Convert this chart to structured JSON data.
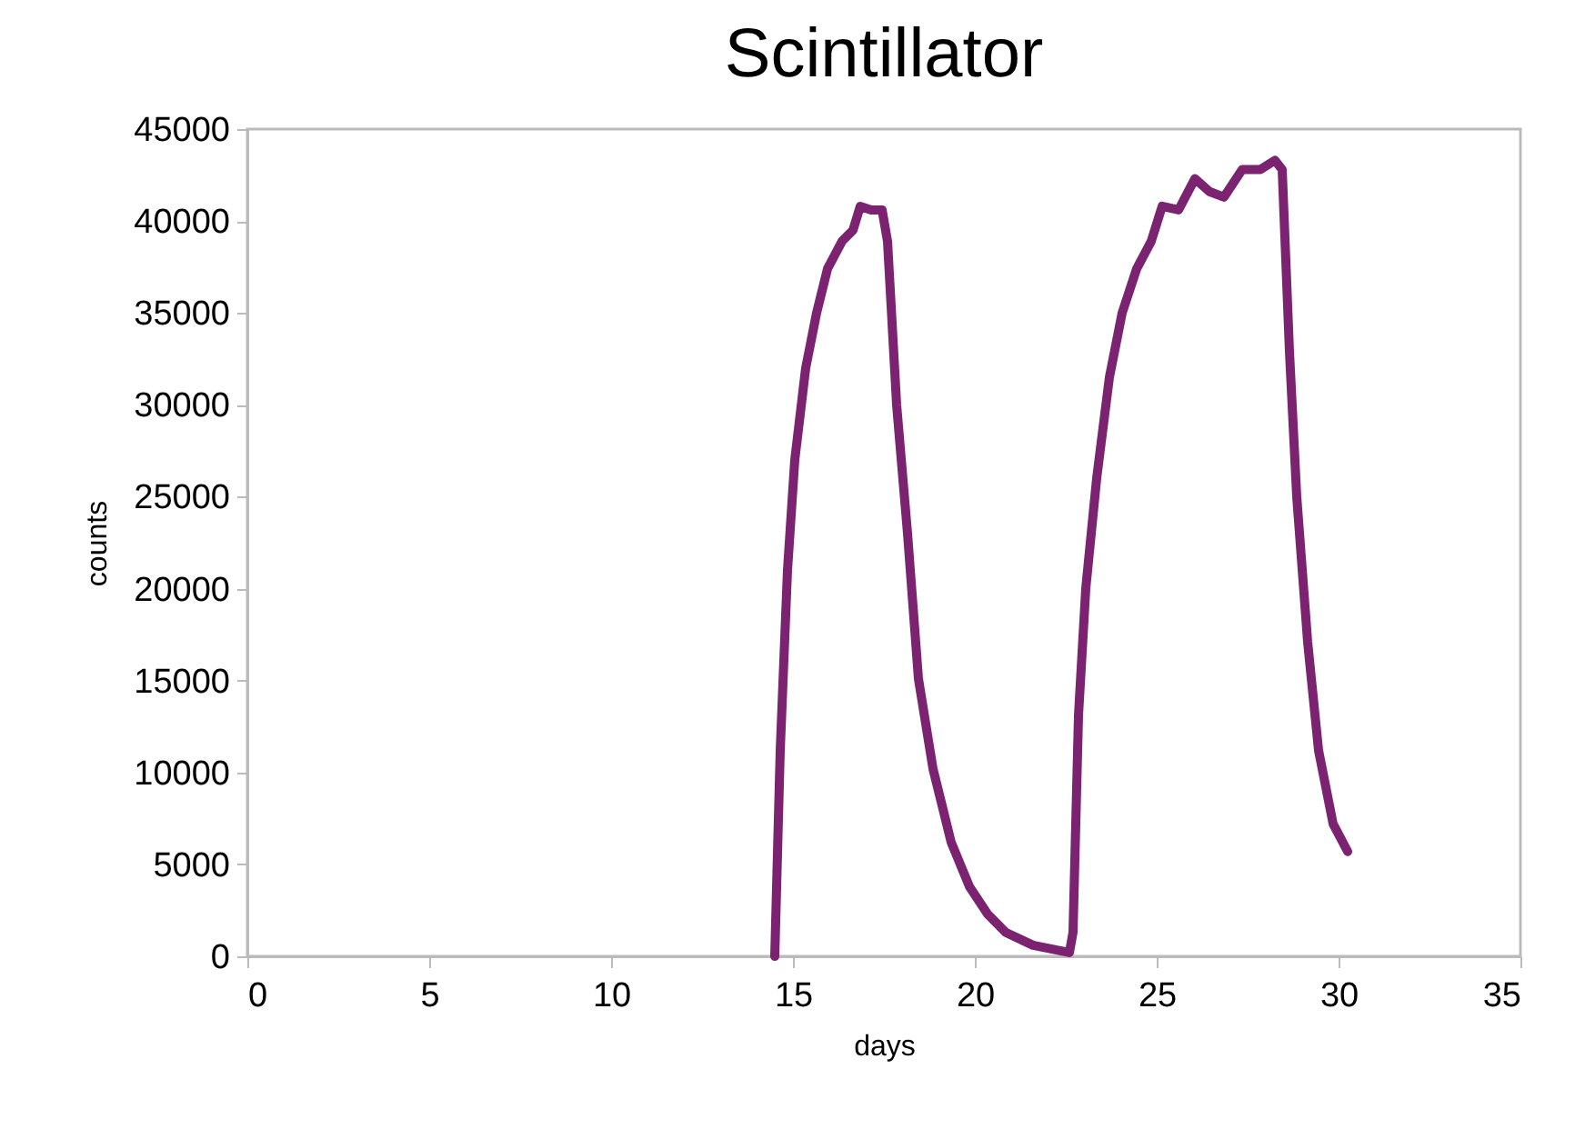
{
  "chart_data": {
    "type": "line",
    "title": "Scintillator",
    "xlabel": "days",
    "ylabel": "counts",
    "xlim": [
      0,
      35
    ],
    "xticks": [
      0,
      5,
      10,
      15,
      20,
      25,
      30,
      35
    ],
    "ylim": [
      0,
      45000
    ],
    "yticks": [
      0,
      5000,
      10000,
      15000,
      20000,
      25000,
      30000,
      35000,
      40000,
      45000
    ],
    "grid": false,
    "marker": "none",
    "line_style": "solid",
    "series": [
      {
        "color": "#7b2270",
        "x": [
          14.5,
          14.65,
          14.85,
          15.05,
          15.35,
          15.65,
          15.95,
          16.35,
          16.65,
          16.85,
          17.15,
          17.45,
          17.6,
          17.85,
          18.15,
          18.45,
          18.85,
          19.35,
          19.85,
          20.35,
          20.85,
          21.6,
          22.35,
          22.6,
          22.7,
          22.85,
          23.05,
          23.35,
          23.7,
          24.05,
          24.45,
          24.85,
          25.15,
          25.6,
          26.05,
          26.45,
          26.85,
          27.35,
          27.85,
          28.25,
          28.45,
          28.65,
          28.85,
          29.15,
          29.45,
          29.85,
          30.25
        ],
        "values": [
          0,
          11200,
          21000,
          27000,
          32000,
          35000,
          37400,
          38900,
          39500,
          40800,
          40600,
          40600,
          38900,
          30000,
          23000,
          15100,
          10200,
          6200,
          3800,
          2300,
          1300,
          600,
          300,
          200,
          1300,
          13100,
          20000,
          26000,
          31500,
          35000,
          37400,
          38900,
          40800,
          40600,
          42300,
          41600,
          41300,
          42800,
          42800,
          43300,
          42800,
          32900,
          25000,
          17100,
          11200,
          7200,
          5700
        ]
      }
    ]
  }
}
